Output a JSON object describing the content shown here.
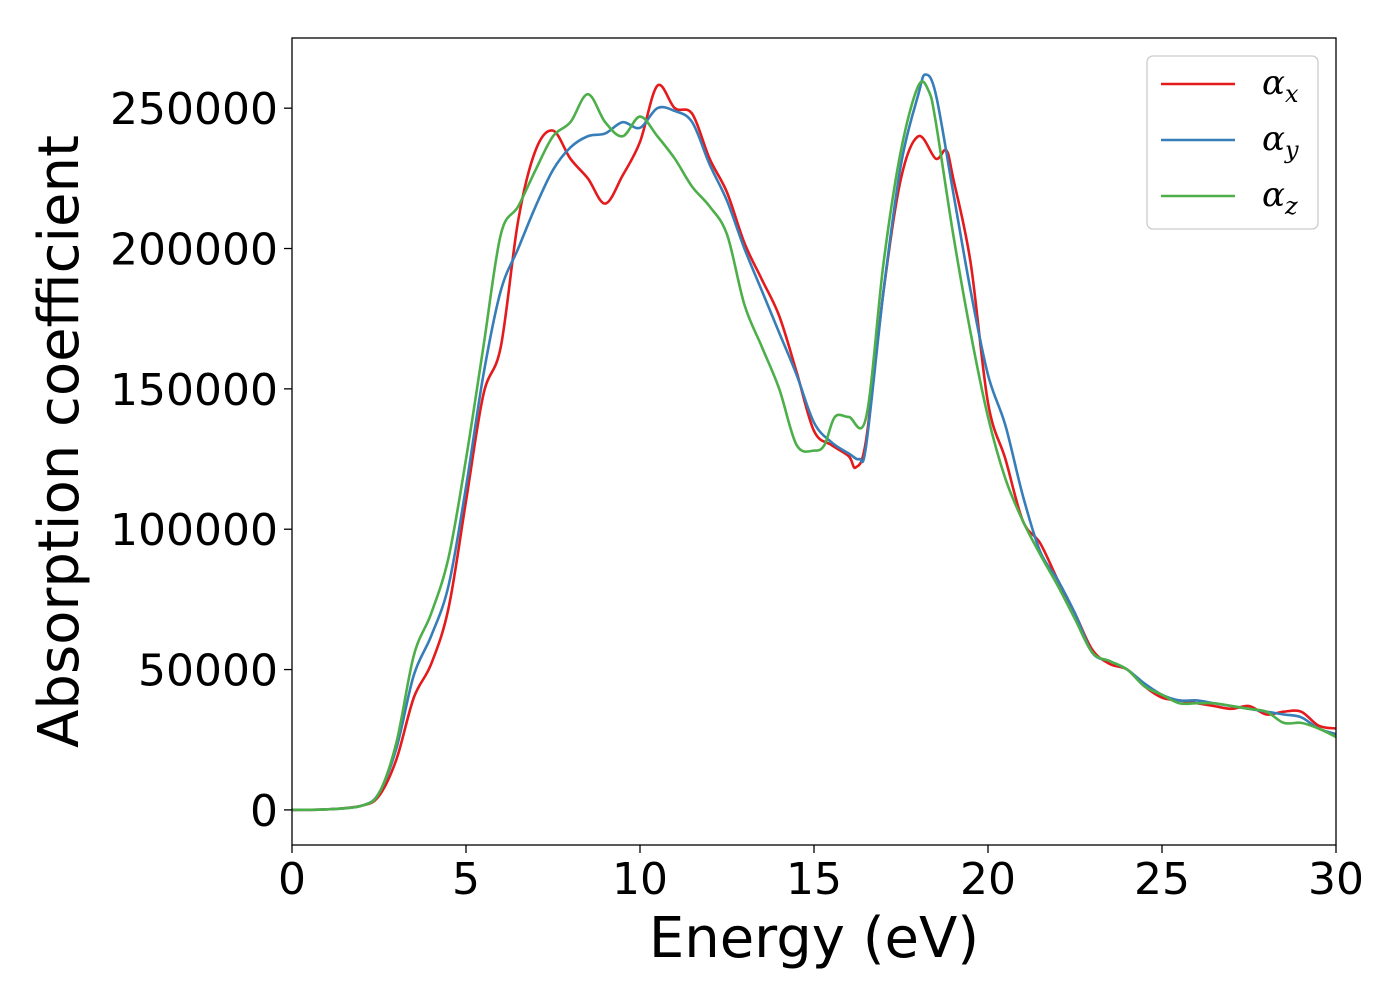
{
  "chart_data": {
    "type": "line",
    "title": "",
    "xlabel": "Energy (eV)",
    "ylabel": "Absorption coefficient",
    "xlim": [
      0,
      30
    ],
    "ylim": [
      -12500,
      275000
    ],
    "xticks": [
      0,
      5,
      10,
      15,
      20,
      25,
      30
    ],
    "yticks": [
      0,
      50000,
      100000,
      150000,
      200000,
      250000
    ],
    "grid": false,
    "legend_position": "top-right",
    "series": [
      {
        "name": "α",
        "subscript": "x",
        "color": "#e41a1c",
        "x": [
          0,
          1,
          2,
          2.5,
          3,
          3.5,
          4,
          4.5,
          5,
          5.5,
          6,
          6.5,
          7,
          7.5,
          8,
          8.5,
          9,
          9.5,
          10,
          10.5,
          11,
          11.5,
          12,
          12.5,
          13,
          13.5,
          14,
          14.5,
          15,
          15.5,
          16,
          16.2,
          16.5,
          17,
          17.5,
          18,
          18.5,
          18.8,
          19,
          19.5,
          20,
          20.5,
          21,
          21.5,
          22,
          22.5,
          23,
          23.5,
          24,
          24.5,
          25,
          25.5,
          26,
          26.5,
          27,
          27.5,
          28,
          28.5,
          29,
          29.5,
          30
        ],
        "y": [
          0,
          200,
          1500,
          5000,
          18000,
          40000,
          52000,
          72000,
          110000,
          148000,
          165000,
          210000,
          235000,
          242000,
          232000,
          225000,
          216000,
          226000,
          238000,
          258000,
          250000,
          248000,
          232000,
          220000,
          202000,
          189000,
          176000,
          156000,
          135000,
          130000,
          126000,
          122000,
          132000,
          185000,
          225000,
          240000,
          232000,
          235000,
          225000,
          195000,
          145000,
          125000,
          103000,
          95000,
          82000,
          70000,
          57000,
          52000,
          50000,
          44000,
          40000,
          39000,
          38000,
          37000,
          36000,
          37000,
          34000,
          35000,
          35000,
          30000,
          29000
        ]
      },
      {
        "name": "α",
        "subscript": "y",
        "color": "#377eb8",
        "x": [
          0,
          1,
          2,
          2.5,
          3,
          3.5,
          4,
          4.5,
          5,
          5.5,
          6,
          6.5,
          7,
          7.5,
          8,
          8.5,
          9,
          9.5,
          10,
          10.5,
          11,
          11.5,
          12,
          12.5,
          13,
          13.5,
          14,
          14.5,
          15,
          15.5,
          16,
          16.3,
          16.5,
          17,
          17.5,
          18,
          18.2,
          18.5,
          19,
          19.5,
          20,
          20.5,
          21,
          21.5,
          22,
          22.5,
          23,
          23.5,
          24,
          24.5,
          25,
          25.5,
          26,
          26.5,
          27,
          27.5,
          28,
          28.5,
          29,
          29.5,
          30
        ],
        "y": [
          0,
          200,
          1500,
          6000,
          22000,
          48000,
          62000,
          80000,
          115000,
          155000,
          185000,
          200000,
          215000,
          228000,
          236000,
          240000,
          241000,
          245000,
          243000,
          250000,
          249000,
          245000,
          230000,
          217000,
          200000,
          185000,
          170000,
          155000,
          138000,
          131000,
          127000,
          125000,
          130000,
          185000,
          230000,
          255000,
          262000,
          255000,
          220000,
          185000,
          155000,
          137000,
          112000,
          92000,
          82000,
          70000,
          56000,
          53000,
          50000,
          45000,
          41000,
          39000,
          39000,
          38000,
          37000,
          36000,
          35000,
          34000,
          33000,
          29000,
          27000
        ]
      },
      {
        "name": "α",
        "subscript": "z",
        "color": "#4daf4a",
        "x": [
          0,
          1,
          2,
          2.5,
          3,
          3.5,
          4,
          4.5,
          5,
          5.5,
          6,
          6.5,
          7,
          7.5,
          8,
          8.5,
          9,
          9.5,
          10,
          10.5,
          11,
          11.5,
          12,
          12.5,
          13,
          13.5,
          14,
          14.5,
          15,
          15.3,
          15.6,
          16,
          16.5,
          17,
          17.5,
          18,
          18.3,
          18.5,
          19,
          19.5,
          20,
          20.5,
          21,
          21.5,
          22,
          22.5,
          23,
          23.5,
          24,
          24.5,
          25,
          25.5,
          26,
          26.5,
          27,
          27.5,
          28,
          28.5,
          29,
          29.5,
          30
        ],
        "y": [
          0,
          200,
          1500,
          6000,
          24000,
          55000,
          70000,
          90000,
          125000,
          165000,
          205000,
          215000,
          228000,
          240000,
          245000,
          255000,
          245000,
          240000,
          247000,
          240000,
          232000,
          222000,
          215000,
          205000,
          180000,
          165000,
          150000,
          130000,
          128000,
          130000,
          140000,
          140000,
          140000,
          195000,
          235000,
          258000,
          256000,
          245000,
          205000,
          170000,
          140000,
          118000,
          103000,
          91000,
          80000,
          68000,
          56000,
          53000,
          50000,
          44000,
          41000,
          38000,
          38000,
          38000,
          37000,
          36000,
          35000,
          31000,
          31000,
          29000,
          26000
        ]
      }
    ]
  }
}
